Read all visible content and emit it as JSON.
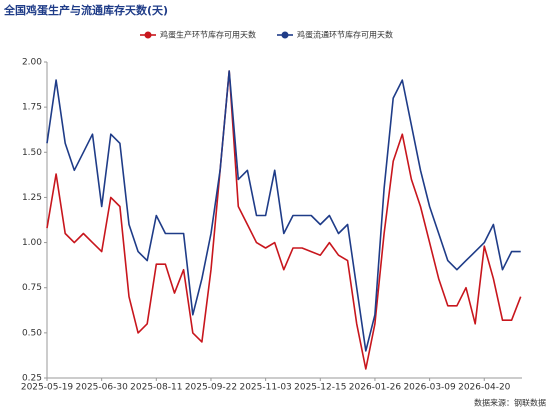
{
  "chart_data": {
    "type": "line",
    "title": "全国鸡蛋生产与流通库存天数(天)",
    "source": "数据来源：钢联数据",
    "x": [
      "2025-05-19",
      "2025-05-26",
      "2025-06-02",
      "2025-06-09",
      "2025-06-16",
      "2025-06-23",
      "2025-06-30",
      "2025-07-07",
      "2025-07-14",
      "2025-07-21",
      "2025-07-28",
      "2025-08-04",
      "2025-08-11",
      "2025-08-18",
      "2025-08-25",
      "2025-09-01",
      "2025-09-08",
      "2025-09-15",
      "2025-09-22",
      "2025-09-29",
      "2025-10-06",
      "2025-10-13",
      "2025-10-20",
      "2025-10-27",
      "2025-11-03",
      "2025-11-10",
      "2025-11-17",
      "2025-11-24",
      "2025-12-01",
      "2025-12-08",
      "2025-12-15",
      "2025-12-22",
      "2025-12-29",
      "2026-01-05",
      "2026-01-12",
      "2026-01-19",
      "2026-01-26",
      "2026-02-02",
      "2026-02-09",
      "2026-02-16",
      "2026-02-23",
      "2026-03-02",
      "2026-03-09",
      "2026-03-16",
      "2026-03-23",
      "2026-03-30",
      "2026-04-06",
      "2026-04-13",
      "2026-04-20",
      "2026-04-27",
      "2026-05-04",
      "2026-05-11",
      "2026-05-18"
    ],
    "series": [
      {
        "name": "鸡蛋生产环节库存可用天数",
        "color": "#c8161d",
        "values": [
          1.08,
          1.38,
          1.05,
          1.0,
          1.05,
          1.0,
          0.95,
          1.25,
          1.2,
          0.7,
          0.5,
          0.55,
          0.88,
          0.88,
          0.72,
          0.85,
          0.5,
          0.45,
          0.85,
          1.4,
          1.95,
          1.2,
          1.1,
          1.0,
          0.97,
          1.0,
          0.85,
          0.97,
          0.97,
          0.95,
          0.93,
          1.0,
          0.93,
          0.9,
          0.55,
          0.3,
          0.55,
          1.05,
          1.45,
          1.6,
          1.35,
          1.2,
          1.0,
          0.8,
          0.65,
          0.65,
          0.75,
          0.55,
          0.98,
          0.8,
          0.57,
          0.57,
          0.7
        ]
      },
      {
        "name": "鸡蛋流通环节库存可用天数",
        "color": "#1f3c88",
        "values": [
          1.55,
          1.9,
          1.55,
          1.4,
          1.5,
          1.6,
          1.2,
          1.6,
          1.55,
          1.1,
          0.95,
          0.9,
          1.15,
          1.05,
          1.05,
          1.05,
          0.6,
          0.8,
          1.05,
          1.4,
          1.95,
          1.35,
          1.4,
          1.15,
          1.15,
          1.4,
          1.05,
          1.15,
          1.15,
          1.15,
          1.1,
          1.15,
          1.05,
          1.1,
          0.75,
          0.4,
          0.6,
          1.3,
          1.8,
          1.9,
          1.65,
          1.4,
          1.2,
          1.05,
          0.9,
          0.85,
          0.9,
          0.95,
          1.0,
          1.1,
          0.85,
          0.95,
          0.95
        ]
      }
    ],
    "xlim": [
      "2025-05-19",
      "2026-05-19"
    ],
    "xticks": [
      "2025-05-19",
      "2025-06-30",
      "2025-08-11",
      "2025-09-22",
      "2025-11-03",
      "2025-12-15",
      "2026-01-26",
      "2026-03-09",
      "2026-04-20"
    ],
    "ylim": [
      0.25,
      2.0
    ],
    "yticks": [
      0.25,
      {
        "value": 0.5,
        "label": "0.50"
      },
      0.75,
      {
        "value": 1.0,
        "label": "1.00"
      },
      1.25,
      {
        "value": 1.5,
        "label": "1.50"
      },
      1.75,
      {
        "value": 2.0,
        "label": "2.00"
      }
    ]
  }
}
